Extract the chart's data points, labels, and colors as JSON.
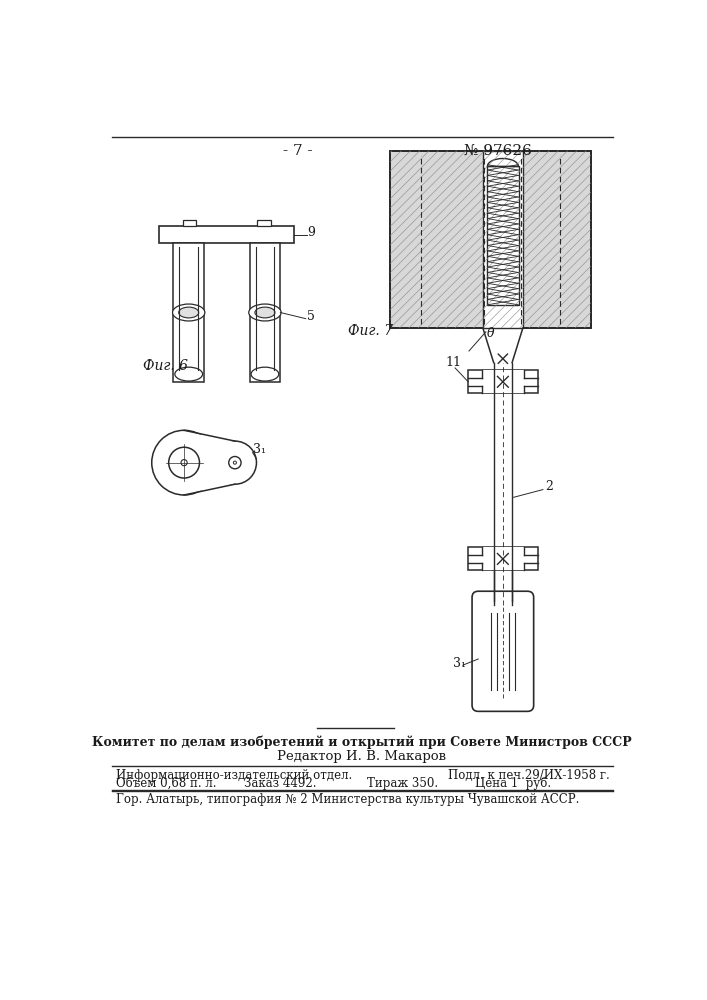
{
  "page_number": "- 7 -",
  "patent_number": "№ 97626",
  "fig6_label": "Фиг. 6",
  "fig7_label": "Фиг. 7",
  "footer_committee": "Комитет по делам изобретений и открытий при Совете Министров СССР",
  "footer_editor": "Редактор И. В. Макаров",
  "footer_col1_row1": "Информационно-издательский отдел.",
  "footer_col2_row1": "Подл. к печ.29/ИХ-1958 г.",
  "footer_col1_row2": "Объем 0,68 п. л.",
  "footer_col2_row2": "Заказ 4492.",
  "footer_col3_row2": "Тираж 350.",
  "footer_col4_row2": "Цена 1  руб.",
  "footer_city": "Гор. Алатырь, типография № 2 Министерства культуры Чувашской АССР.",
  "bg_color": "#ffffff",
  "line_color": "#2a2a2a",
  "text_color": "#1a1a1a"
}
